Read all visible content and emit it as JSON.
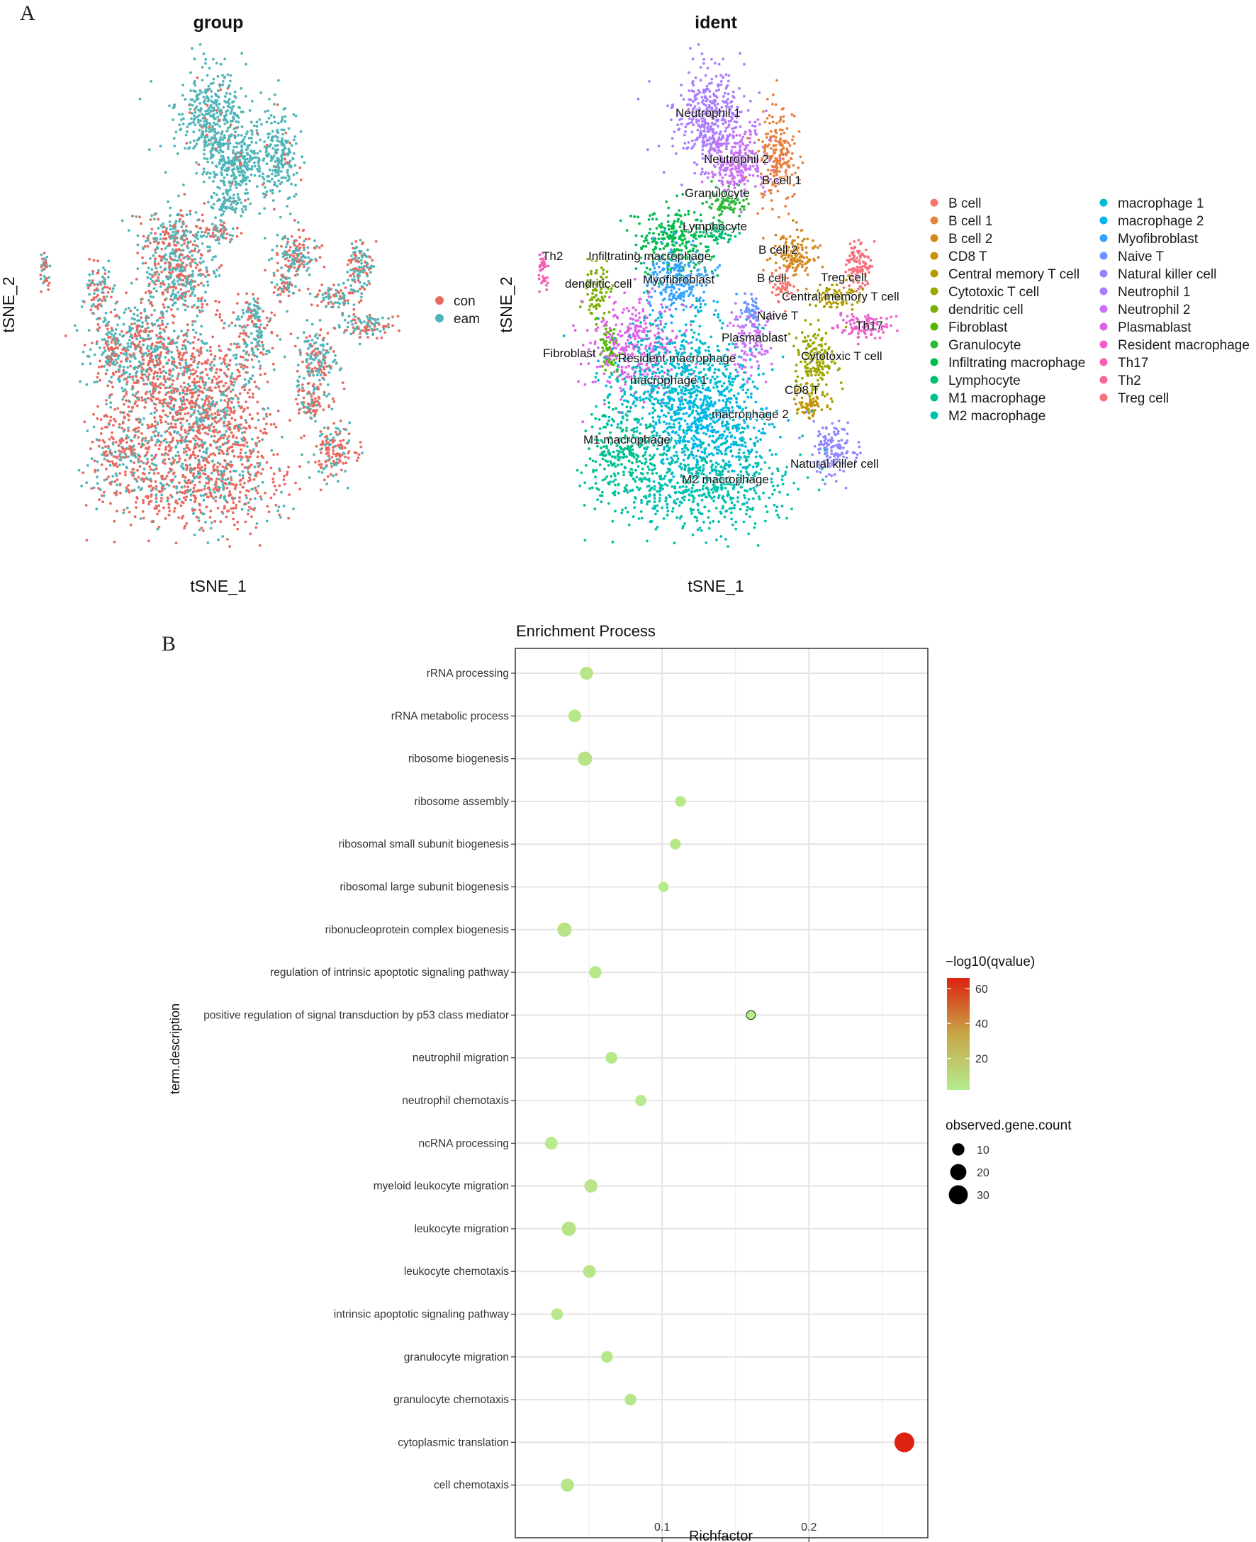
{
  "panel_a": {
    "letter": "A",
    "group_plot": {
      "title": "group",
      "xlabel": "tSNE_1",
      "ylabel": "tSNE_2",
      "legend": [
        {
          "label": "con",
          "color": "#e8695f"
        },
        {
          "label": "eam",
          "color": "#4fb5b9"
        }
      ]
    },
    "ident_plot": {
      "title": "ident",
      "xlabel": "tSNE_1",
      "ylabel": "tSNE_2",
      "cluster_labels": [
        "Neutrophil 1",
        "Neutrophil 2",
        "B cell 1",
        "Granulocyte",
        "Lymphocyte",
        "Infiltrating macrophage",
        "Th2",
        "dendritic cell",
        "Myofibroblast",
        "B cell 2",
        "B cell",
        "Treg cell",
        "Central memory T cell",
        "Naive T",
        "Th17",
        "Plasmablast",
        "Fibroblast",
        "Resident macrophage",
        "macrophage 1",
        "Cytotoxic T cell",
        "CD8 T",
        "macrophage 2",
        "M1 macrophage",
        "Natural killer cell",
        "M2 macrophage"
      ],
      "legend_col1": [
        {
          "label": "B cell",
          "color": "#f8766d"
        },
        {
          "label": "B cell 1",
          "color": "#e7813f"
        },
        {
          "label": "B cell 2",
          "color": "#d4891e"
        },
        {
          "label": "CD8 T",
          "color": "#c39309"
        },
        {
          "label": "Central memory T cell",
          "color": "#b29b00"
        },
        {
          "label": "Cytotoxic T cell",
          "color": "#9ba600"
        },
        {
          "label": "dendritic cell",
          "color": "#7bae00"
        },
        {
          "label": "Fibroblast",
          "color": "#55b500"
        },
        {
          "label": "Granulocyte",
          "color": "#2bb738"
        },
        {
          "label": "Infiltrating macrophage",
          "color": "#00bb4e"
        },
        {
          "label": "Lymphocyte",
          "color": "#00be70"
        },
        {
          "label": "M1 macrophage",
          "color": "#00c08e"
        },
        {
          "label": "M2 macrophage",
          "color": "#00c0af"
        }
      ],
      "legend_col2": [
        {
          "label": "macrophage 1",
          "color": "#00bcd0"
        },
        {
          "label": "macrophage 2",
          "color": "#00b4ef"
        },
        {
          "label": "Myofibroblast",
          "color": "#35a2ff"
        },
        {
          "label": "Naive T",
          "color": "#6a94ff"
        },
        {
          "label": "Natural killer cell",
          "color": "#8f87ff"
        },
        {
          "label": "Neutrophil 1",
          "color": "#ad7cff"
        },
        {
          "label": "Neutrophil 2",
          "color": "#c971f5"
        },
        {
          "label": "Plasmablast",
          "color": "#dd63e6"
        },
        {
          "label": "Resident macrophage",
          "color": "#ee5ed0"
        },
        {
          "label": "Th17",
          "color": "#f65fb6"
        },
        {
          "label": "Th2",
          "color": "#fa6797"
        },
        {
          "label": "Treg  cell",
          "color": "#f8707b"
        }
      ]
    }
  },
  "panel_b": {
    "letter": "B",
    "chart_data": {
      "type": "scatter",
      "title": "Enrichment Process",
      "xlabel": "Richfactor",
      "ylabel": "term.description",
      "xlim": [
        0.0,
        0.281
      ],
      "x_ticks": [
        0.1,
        0.2
      ],
      "x_tick_labels": [
        "0.1",
        "0.2"
      ],
      "grid": true,
      "terms": [
        "rRNA processing",
        "rRNA metabolic process",
        "ribosome biogenesis",
        "ribosome assembly",
        "ribosomal small subunit biogenesis",
        "ribosomal large subunit biogenesis",
        "ribonucleoprotein complex biogenesis",
        "regulation of intrinsic apoptotic signaling pathway",
        "positive regulation of signal transduction by p53 class mediator",
        "neutrophil migration",
        "neutrophil chemotaxis",
        "ncRNA processing",
        "myeloid leukocyte migration",
        "leukocyte migration",
        "leukocyte chemotaxis",
        "intrinsic apoptotic signaling pathway",
        "granulocyte migration",
        "granulocyte chemotaxis",
        "cytoplasmic translation",
        "cell chemotaxis"
      ],
      "richfactor": [
        0.0485,
        0.0405,
        0.0475,
        0.1125,
        0.109,
        0.101,
        0.0335,
        0.0545,
        0.1605,
        0.0655,
        0.0855,
        0.0245,
        0.0515,
        0.0365,
        0.0505,
        0.0285,
        0.0625,
        0.0785,
        0.265,
        0.0355
      ],
      "gene_count": [
        12,
        11,
        15,
        7,
        7,
        6,
        15,
        10,
        4,
        9,
        8,
        11,
        12,
        15,
        11,
        9,
        9,
        9,
        33,
        12
      ],
      "neg_log10_qvalue": [
        5,
        4,
        6,
        4,
        4,
        3,
        6,
        4,
        3,
        4,
        3,
        3,
        5,
        6,
        5,
        3,
        4,
        4,
        66,
        5
      ],
      "color_legend": {
        "title": "−log10(qvalue)",
        "ticks": [
          20,
          40,
          60
        ],
        "range": [
          2,
          66
        ],
        "low_color": "#b5ec8f",
        "mid_color": "#c7a646",
        "high_color": "#dd2211"
      },
      "size_legend": {
        "title": "observed.gene.count",
        "ticks": [
          10,
          20,
          30
        ]
      }
    }
  }
}
